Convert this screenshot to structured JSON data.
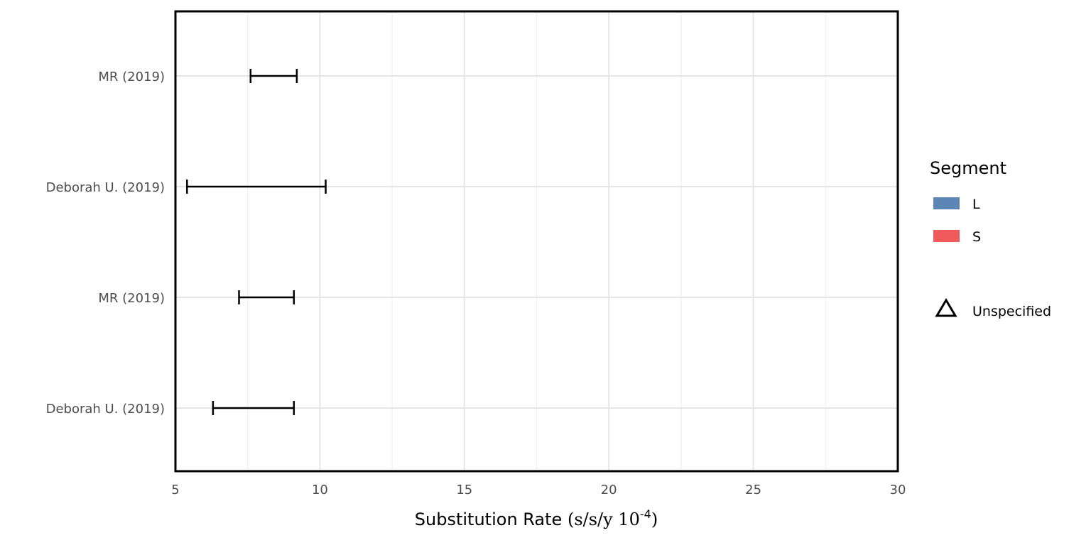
{
  "chart_data": {
    "type": "errorbar",
    "xlabel_main": "Substitution Rate ",
    "xlabel_open": "(s/s/y 10",
    "xlabel_exp": "-4",
    "xlabel_close": ")",
    "ylabel": "",
    "xlim": [
      5,
      30
    ],
    "xticks": [
      5,
      10,
      15,
      20,
      25,
      30
    ],
    "xtick_labels": [
      "5",
      "10",
      "15",
      "20",
      "25",
      "30"
    ],
    "grid": true,
    "categories": [
      "MR (2019)",
      "Deborah U. (2019)",
      "MR (2019)",
      "Deborah U. (2019)"
    ],
    "intervals": [
      {
        "label": "MR (2019)",
        "low": 7.6,
        "high": 9.2
      },
      {
        "label": "Deborah U. (2019)",
        "low": 5.4,
        "high": 10.2
      },
      {
        "label": "MR (2019)",
        "low": 7.2,
        "high": 9.1
      },
      {
        "label": "Deborah U. (2019)",
        "low": 6.3,
        "high": 9.1
      }
    ],
    "legend": {
      "position": "right",
      "title": "Segment",
      "items": [
        {
          "label": "L",
          "color": "#5b86b5"
        },
        {
          "label": "S",
          "color": "#f05a5a"
        }
      ],
      "shape_item": {
        "label": "Unspecified",
        "shape": "triangle-open"
      }
    }
  }
}
